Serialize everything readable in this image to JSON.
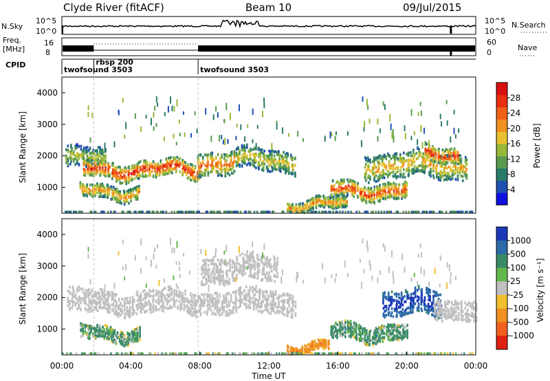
{
  "header": {
    "station": "Clyde River (fitACF)",
    "beam": "Beam 10",
    "date": "09/Jul/2015"
  },
  "strip_labels": {
    "nsky": "N.Sky",
    "nsky_ticks": [
      "10^5",
      "10^0"
    ],
    "nsearch": "N.Search",
    "nsearch_ticks": [
      "10^5",
      "10^0"
    ],
    "freq_line1": "Freq.",
    "freq_line2": "[MHz]",
    "freq_ticks": [
      "16",
      "8"
    ],
    "nave": "Nave",
    "nave_ticks": [
      "60",
      "0"
    ],
    "cpid": "CPID"
  },
  "cpid_segments": [
    {
      "name": "twofsound 3503",
      "start_h": 0.0,
      "end_h": 1.85
    },
    {
      "name": "rbsp 200",
      "start_h": 1.85,
      "end_h": 7.9
    },
    {
      "name": "twofsound 3503",
      "start_h": 7.9,
      "end_h": 24.0
    }
  ],
  "time_axis": {
    "label": "Time UT",
    "ticks": [
      "00:00",
      "04:00",
      "08:00",
      "12:00",
      "16:00",
      "20:00",
      "00:00"
    ]
  },
  "range_axis": {
    "label": "Slant Range [km]",
    "ticks": [
      "1000",
      "2000",
      "3000",
      "4000"
    ]
  },
  "power_bar": {
    "label": "Power [dB]",
    "ticks": [
      "4",
      "8",
      "12",
      "16",
      "20",
      "24",
      "28"
    ],
    "colors": [
      "#1010e0",
      "#2050b0",
      "#2a7a6a",
      "#5a9a50",
      "#98b83a",
      "#e8c030",
      "#f09020",
      "#f06018",
      "#e83010",
      "#d81010"
    ]
  },
  "velocity_bar": {
    "label": "Velocity [m s⁻¹]",
    "ticks": [
      "1000",
      "500",
      "100",
      "25",
      "-25",
      "-100",
      "-500",
      "-1000"
    ],
    "colors": [
      "#1a38b8",
      "#2c6aa8",
      "#3a8a68",
      "#62b84a",
      "#c0c0c0",
      "#f0c030",
      "#f09020",
      "#f06020",
      "#e02010"
    ]
  },
  "chart_data": [
    {
      "type": "heatmap",
      "panel": "power",
      "x_range_hours": [
        0,
        24
      ],
      "y_range_km": [
        180,
        4500
      ],
      "colorbar_range_db": [
        0,
        32
      ],
      "bands": [
        {
          "t0": 0.2,
          "t1": 2.5,
          "r_center": 1900,
          "width": 400,
          "peak_db": 14
        },
        {
          "t0": 1.2,
          "t1": 8.0,
          "r_center": 1550,
          "width": 330,
          "peak_db": 26
        },
        {
          "t0": 7.8,
          "t1": 10.0,
          "r_center": 1800,
          "width": 450,
          "peak_db": 22
        },
        {
          "t0": 10.0,
          "t1": 13.5,
          "r_center": 1850,
          "width": 420,
          "peak_db": 16
        },
        {
          "t0": 1.0,
          "t1": 4.5,
          "r_center": 850,
          "width": 270,
          "peak_db": 20
        },
        {
          "t0": 13.0,
          "t1": 16.5,
          "r_center": 450,
          "width": 230,
          "peak_db": 20
        },
        {
          "t0": 15.5,
          "t1": 20.0,
          "r_center": 900,
          "width": 320,
          "peak_db": 24
        },
        {
          "t0": 17.5,
          "t1": 23.5,
          "r_center": 1700,
          "width": 500,
          "peak_db": 18
        },
        {
          "t0": 21.0,
          "t1": 23.0,
          "r_center": 2050,
          "width": 300,
          "peak_db": 26
        }
      ]
    },
    {
      "type": "heatmap",
      "panel": "velocity",
      "x_range_hours": [
        0,
        24
      ],
      "y_range_km": [
        180,
        4500
      ],
      "colorbar_range_m_s": [
        -1000,
        1000
      ],
      "bands": [
        {
          "t0": 0.3,
          "t1": 13.5,
          "r_center": 1850,
          "width": 450,
          "vel": 0
        },
        {
          "t0": 8.0,
          "t1": 12.5,
          "r_center": 2900,
          "width": 500,
          "vel": 0
        },
        {
          "t0": 1.0,
          "t1": 4.5,
          "r_center": 850,
          "width": 270,
          "vel": 120
        },
        {
          "t0": 13.0,
          "t1": 15.5,
          "r_center": 420,
          "width": 180,
          "vel": -350
        },
        {
          "t0": 15.5,
          "t1": 20.0,
          "r_center": 900,
          "width": 320,
          "vel": 150
        },
        {
          "t0": 18.5,
          "t1": 22.0,
          "r_center": 1800,
          "width": 500,
          "vel": 800
        },
        {
          "t0": 21.5,
          "t1": 24.0,
          "r_center": 1650,
          "width": 400,
          "vel": 0
        }
      ]
    }
  ]
}
